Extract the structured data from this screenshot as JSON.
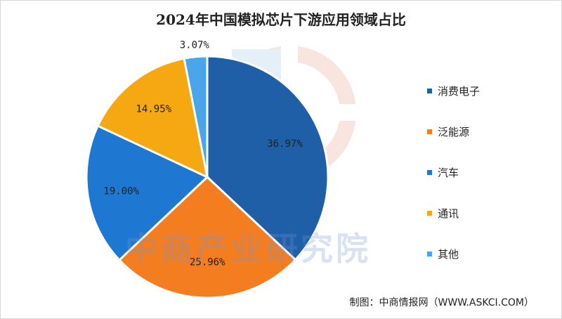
{
  "title": "2024年中国模拟芯片下游应用领域占比",
  "source": "制图：中商情报网（WWW.ASKCI.COM）",
  "watermark": "中商产业研究院",
  "chart_data": {
    "type": "pie",
    "title": "2024年中国模拟芯片下游应用领域占比",
    "labels": [
      "消费电子",
      "泛能源",
      "汽车",
      "通讯",
      "其他"
    ],
    "values": [
      36.97,
      25.96,
      19.0,
      14.95,
      3.07
    ],
    "value_labels": [
      "36.97%",
      "25.96%",
      "19.00%",
      "14.95%",
      "3.07%"
    ],
    "colors": [
      "#1f5fa8",
      "#f47d20",
      "#1e78d2",
      "#f5a811",
      "#4aa5ea"
    ],
    "start_angle_deg": 0,
    "direction": "clockwise",
    "legend": "right"
  },
  "legend": {
    "items": [
      {
        "label": "消费电子",
        "color": "#1f5fa8"
      },
      {
        "label": "泛能源",
        "color": "#f47d20"
      },
      {
        "label": "汽车",
        "color": "#1e78d2"
      },
      {
        "label": "通讯",
        "color": "#f5a811"
      },
      {
        "label": "其他",
        "color": "#4aa5ea"
      }
    ]
  }
}
